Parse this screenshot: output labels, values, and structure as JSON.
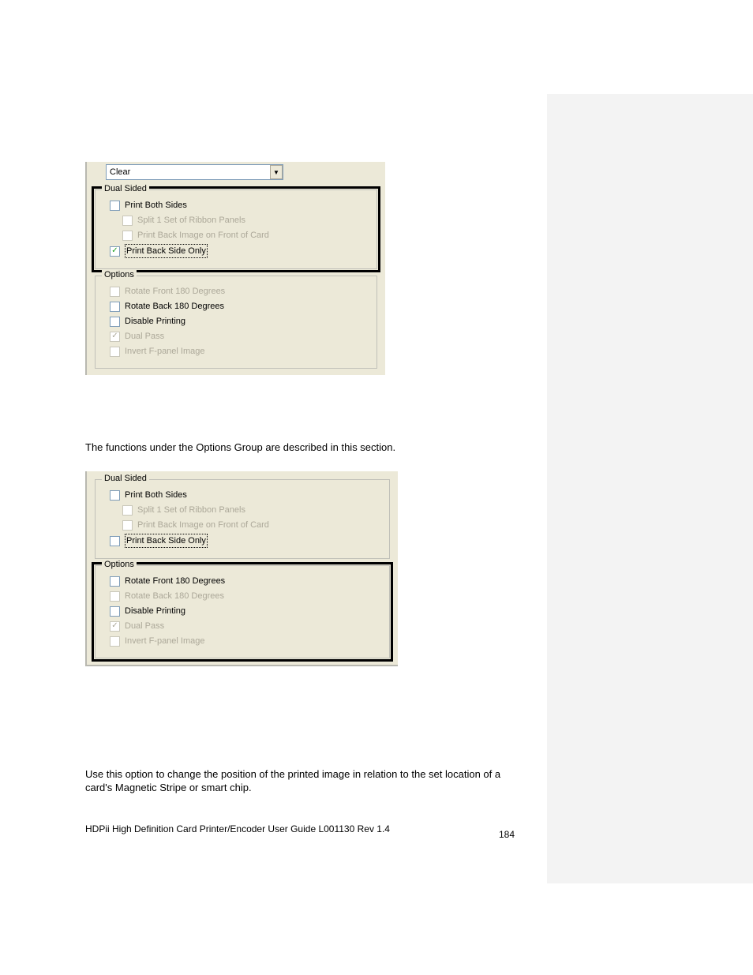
{
  "screenshot1": {
    "dropdown_value": "Clear",
    "dual_sided": {
      "legend": "Dual Sided",
      "items": [
        {
          "label": "Print Both Sides",
          "checked": false,
          "enabled": true,
          "indent": false
        },
        {
          "label": "Split 1 Set of Ribbon Panels",
          "checked": false,
          "enabled": false,
          "indent": true
        },
        {
          "label": "Print Back Image on Front of Card",
          "checked": false,
          "enabled": false,
          "indent": true
        },
        {
          "label": "Print Back Side Only",
          "checked": true,
          "enabled": true,
          "indent": false,
          "dotted": true
        }
      ]
    },
    "options": {
      "legend": "Options",
      "items": [
        {
          "label": "Rotate Front 180 Degrees",
          "checked": false,
          "enabled": false
        },
        {
          "label": "Rotate Back 180 Degrees",
          "checked": false,
          "enabled": true
        },
        {
          "label": "Disable Printing",
          "checked": false,
          "enabled": true
        },
        {
          "label": "Dual Pass",
          "checked": true,
          "enabled": false
        },
        {
          "label": "Invert F-panel Image",
          "checked": false,
          "enabled": false
        }
      ]
    }
  },
  "text1": "The functions under the Options Group are described in this section.",
  "screenshot2": {
    "dual_sided": {
      "legend": "Dual Sided",
      "items": [
        {
          "label": "Print Both Sides",
          "checked": false,
          "enabled": true,
          "indent": false
        },
        {
          "label": "Split 1 Set of Ribbon Panels",
          "checked": false,
          "enabled": false,
          "indent": true
        },
        {
          "label": "Print Back Image on Front of Card",
          "checked": false,
          "enabled": false,
          "indent": true
        },
        {
          "label": "Print Back Side Only",
          "checked": false,
          "enabled": true,
          "indent": false,
          "dotted": true
        }
      ]
    },
    "options": {
      "legend": "Options",
      "items": [
        {
          "label": "Rotate Front 180 Degrees",
          "checked": false,
          "enabled": true
        },
        {
          "label": "Rotate Back 180 Degrees",
          "checked": false,
          "enabled": false
        },
        {
          "label": "Disable Printing",
          "checked": false,
          "enabled": true
        },
        {
          "label": "Dual Pass",
          "checked": true,
          "enabled": false
        },
        {
          "label": "Invert F-panel Image",
          "checked": false,
          "enabled": false
        }
      ]
    }
  },
  "text2": "Use this option to change the position of the printed image in relation to the set location of a card's Magnetic Stripe or smart chip.",
  "footer": "HDPii High Definition Card Printer/Encoder User Guide    L001130 Rev 1.4",
  "page_number": "184"
}
